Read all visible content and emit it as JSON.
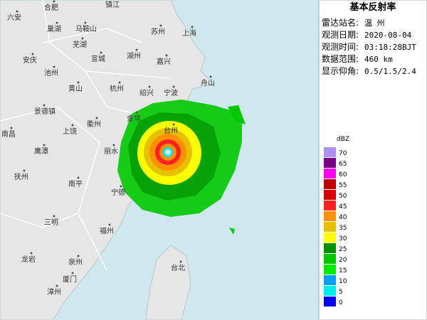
{
  "panel": {
    "title": "基本反射率",
    "fields": [
      {
        "label": "雷达站名:",
        "value": "温 州"
      },
      {
        "label": "观测日期:",
        "value": "2020-08-04"
      },
      {
        "label": "观测时间:",
        "value": "03:18:28BJT"
      },
      {
        "label": "数据范围:",
        "value": "460 km"
      },
      {
        "label": "显示仰角:",
        "value": "0.5/1.5/2.4"
      }
    ]
  },
  "legend": {
    "unit": "dBZ",
    "levels": [
      {
        "value": 70,
        "color": "#ad90f0"
      },
      {
        "value": 65,
        "color": "#780084"
      },
      {
        "value": 60,
        "color": "#ff00f0"
      },
      {
        "value": 55,
        "color": "#c00000"
      },
      {
        "value": 50,
        "color": "#d60000"
      },
      {
        "value": 45,
        "color": "#ff2020"
      },
      {
        "value": 40,
        "color": "#ff9000"
      },
      {
        "value": 35,
        "color": "#e7c000"
      },
      {
        "value": 30,
        "color": "#ffff00"
      },
      {
        "value": 25,
        "color": "#009000"
      },
      {
        "value": 20,
        "color": "#00c800"
      },
      {
        "value": 15,
        "color": "#00ec00"
      },
      {
        "value": 10,
        "color": "#01a0f6"
      },
      {
        "value": 5,
        "color": "#00ecec"
      },
      {
        "value": 0,
        "color": "#0000f6"
      }
    ]
  },
  "cities": [
    {
      "name": "六安"
    },
    {
      "name": "合肥"
    },
    {
      "name": "镇江"
    },
    {
      "name": "巢湖"
    },
    {
      "name": "马鞍山"
    },
    {
      "name": "苏州"
    },
    {
      "name": "上海"
    },
    {
      "name": "芜湖"
    },
    {
      "name": "宣城"
    },
    {
      "name": "湖州"
    },
    {
      "name": "嘉兴"
    },
    {
      "name": "安庆"
    },
    {
      "name": "池州"
    },
    {
      "name": "黄山"
    },
    {
      "name": "杭州"
    },
    {
      "name": "绍兴"
    },
    {
      "name": "宁波"
    },
    {
      "name": "舟山"
    },
    {
      "name": "景德镇"
    },
    {
      "name": "金华"
    },
    {
      "name": "衢州"
    },
    {
      "name": "台州"
    },
    {
      "name": "上饶"
    },
    {
      "name": "南昌"
    },
    {
      "name": "鹰潭"
    },
    {
      "name": "丽水"
    },
    {
      "name": "抚州"
    },
    {
      "name": "南平"
    },
    {
      "name": "宁德"
    },
    {
      "name": "三明"
    },
    {
      "name": "福州"
    },
    {
      "name": "龙岩"
    },
    {
      "name": "泉州"
    },
    {
      "name": "厦门"
    },
    {
      "name": "漳州"
    },
    {
      "name": "台北"
    }
  ]
}
